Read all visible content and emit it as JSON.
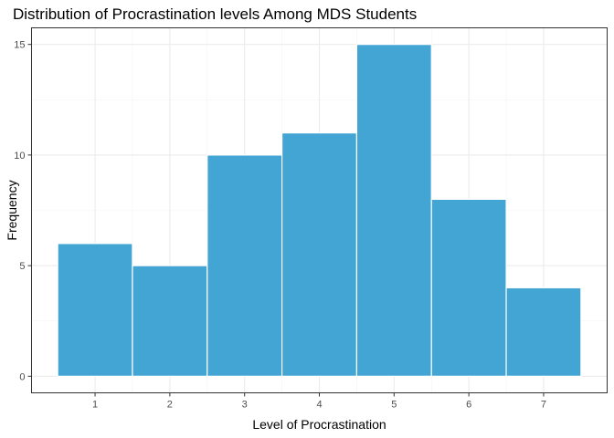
{
  "chart_data": {
    "type": "bar",
    "title": "Distribution of Procrastination levels Among MDS Students",
    "xlabel": "Level of Procrastination",
    "ylabel": "Frequency",
    "categories": [
      1,
      2,
      3,
      4,
      5,
      6,
      7
    ],
    "values": [
      6,
      5,
      10,
      11,
      15,
      8,
      4
    ],
    "x_ticks": [
      1,
      2,
      3,
      4,
      5,
      6,
      7
    ],
    "y_ticks": [
      0,
      5,
      10,
      15
    ],
    "xlim": [
      0.15,
      7.85
    ],
    "ylim": [
      -0.75,
      15.75
    ],
    "bar_color": "#43a5d4",
    "bar_edge_color": "#ffffff",
    "grid": true,
    "legend": "none"
  }
}
